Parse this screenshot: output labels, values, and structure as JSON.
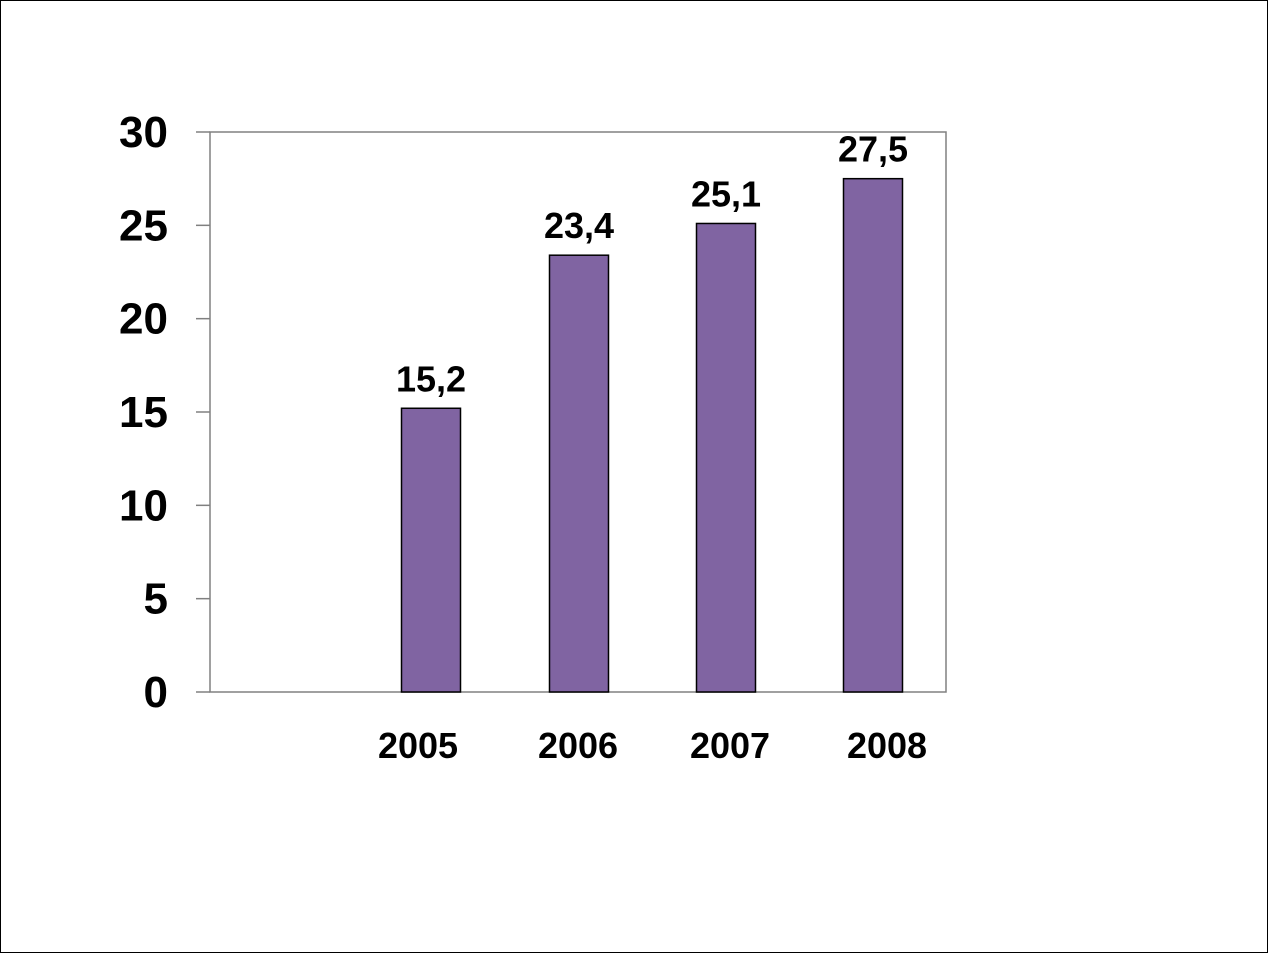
{
  "chart_data": {
    "type": "bar",
    "categories": [
      "2005",
      "2006",
      "2007",
      "2008"
    ],
    "values": [
      15.2,
      23.4,
      25.1,
      27.5
    ],
    "value_labels": [
      "15,2",
      "23,4",
      "25,1",
      "27,5"
    ],
    "y_ticks": [
      0,
      5,
      10,
      15,
      20,
      25,
      30
    ],
    "ylim": [
      0,
      30
    ],
    "title": "",
    "xlabel": "",
    "ylabel": "",
    "grid": false,
    "legend": "none",
    "colors": {
      "bar_fill": "#8064A2",
      "bar_stroke": "#000000",
      "axis": "#808080"
    }
  }
}
